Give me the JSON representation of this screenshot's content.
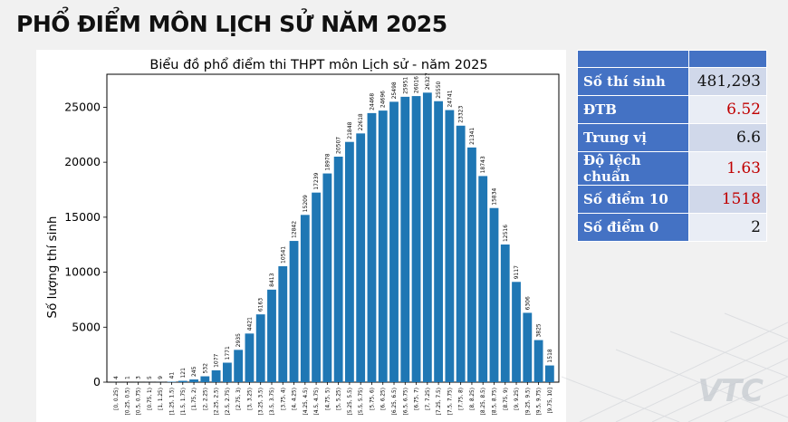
{
  "page": {
    "title": "PHỔ ĐIỂM MÔN LỊCH SỬ NĂM 2025"
  },
  "watermark": "VTC",
  "stats": [
    {
      "label": "Số thí sinh",
      "value": "481,293",
      "highlight": false
    },
    {
      "label": "ĐTB",
      "value": "6.52",
      "highlight": true
    },
    {
      "label": "Trung vị",
      "value": "6.6",
      "highlight": false
    },
    {
      "label": "Độ lệch chuẩn",
      "value": "1.63",
      "highlight": true
    },
    {
      "label": "Số điểm 10",
      "value": "1518",
      "highlight": true
    },
    {
      "label": "Số điểm 0",
      "value": "2",
      "highlight": false
    }
  ],
  "colors": {
    "bar": "#1f77b4",
    "table_header": "#4472c4",
    "highlight_text": "#c00000"
  },
  "chart_data": {
    "type": "bar",
    "title": "Biểu đồ phổ điểm thi THPT môn Lịch sử - năm 2025",
    "xlabel": "",
    "ylabel": "Số lượng thí sinh",
    "ylim": [
      0,
      28000
    ],
    "yticks": [
      0,
      5000,
      10000,
      15000,
      20000,
      25000
    ],
    "grid": false,
    "categories": [
      "[0, 0.25)",
      "[0.25, 0.5)",
      "[0.5, 0.75)",
      "[0.75, 1)",
      "[1, 1.25)",
      "[1.25, 1.5)",
      "[1.5, 1.75)",
      "[1.75, 2)",
      "[2, 2.25)",
      "[2.25, 2.5)",
      "[2.5, 2.75)",
      "[2.75, 3)",
      "[3, 3.25)",
      "[3.25, 3.5)",
      "[3.5, 3.75)",
      "[3.75, 4)",
      "[4, 4.25)",
      "[4.25, 4.5)",
      "[4.5, 4.75)",
      "[4.75, 5)",
      "[5, 5.25)",
      "[5.25, 5.5)",
      "[5.5, 5.75)",
      "[5.75, 6)",
      "[6, 6.25)",
      "[6.25, 6.5)",
      "[6.5, 6.75)",
      "[6.75, 7)",
      "[7, 7.25)",
      "[7.25, 7.5)",
      "[7.5, 7.75)",
      "[7.75, 8)",
      "[8, 8.25)",
      "[8.25, 8.5)",
      "[8.5, 8.75)",
      "[8.75, 9)",
      "[9, 9.25)",
      "[9.25, 9.5)",
      "[9.5, 9.75)",
      "[9.75, 10]"
    ],
    "values": [
      4,
      1,
      3,
      5,
      9,
      41,
      121,
      245,
      532,
      1077,
      1771,
      2935,
      4421,
      6163,
      8413,
      10541,
      12842,
      15209,
      17239,
      18978,
      20507,
      21848,
      22618,
      24468,
      24696,
      25498,
      25951,
      26016,
      26327,
      25550,
      24741,
      23323,
      21341,
      18743,
      15834,
      12516,
      9117,
      6306,
      3825,
      1518
    ]
  }
}
